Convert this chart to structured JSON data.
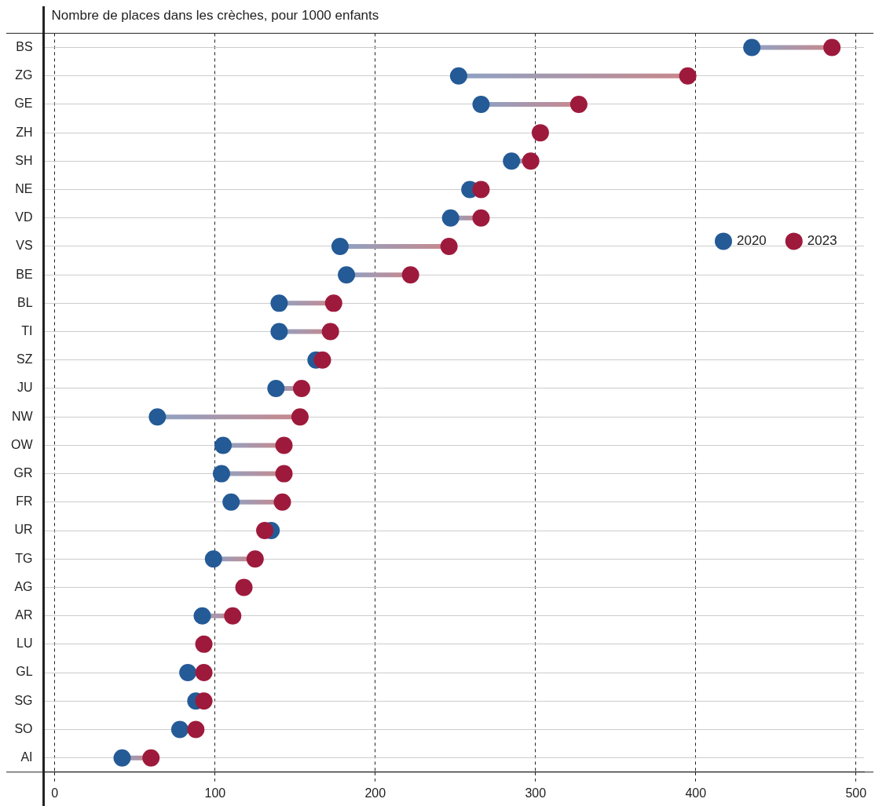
{
  "chart_data": {
    "type": "scatter",
    "orientation": "horizontal",
    "title": "Nombre de places dans les crèches, pour 1000 enfants",
    "categories": [
      "BS",
      "ZG",
      "GE",
      "ZH",
      "SH",
      "NE",
      "VD",
      "VS",
      "BE",
      "BL",
      "TI",
      "SZ",
      "JU",
      "NW",
      "OW",
      "GR",
      "FR",
      "UR",
      "TG",
      "AG",
      "AR",
      "LU",
      "GL",
      "SG",
      "SO",
      "AI"
    ],
    "series": [
      {
        "name": "2020",
        "color": "#245a96",
        "values": [
          435,
          252,
          266,
          null,
          285,
          259,
          247,
          178,
          182,
          140,
          140,
          163,
          138,
          64,
          105,
          104,
          110,
          135,
          99,
          null,
          92,
          null,
          83,
          88,
          78,
          42
        ]
      },
      {
        "name": "2023",
        "color": "#9e1a3c",
        "values": [
          485,
          395,
          327,
          303,
          297,
          266,
          266,
          246,
          222,
          174,
          172,
          167,
          154,
          153,
          143,
          143,
          142,
          131,
          125,
          118,
          111,
          93,
          93,
          93,
          88,
          60
        ]
      }
    ],
    "xlim": [
      -7,
      505
    ],
    "xticks": [
      0,
      100,
      200,
      300,
      400,
      500
    ],
    "grid": true,
    "legend": "right",
    "marker": "circle"
  }
}
